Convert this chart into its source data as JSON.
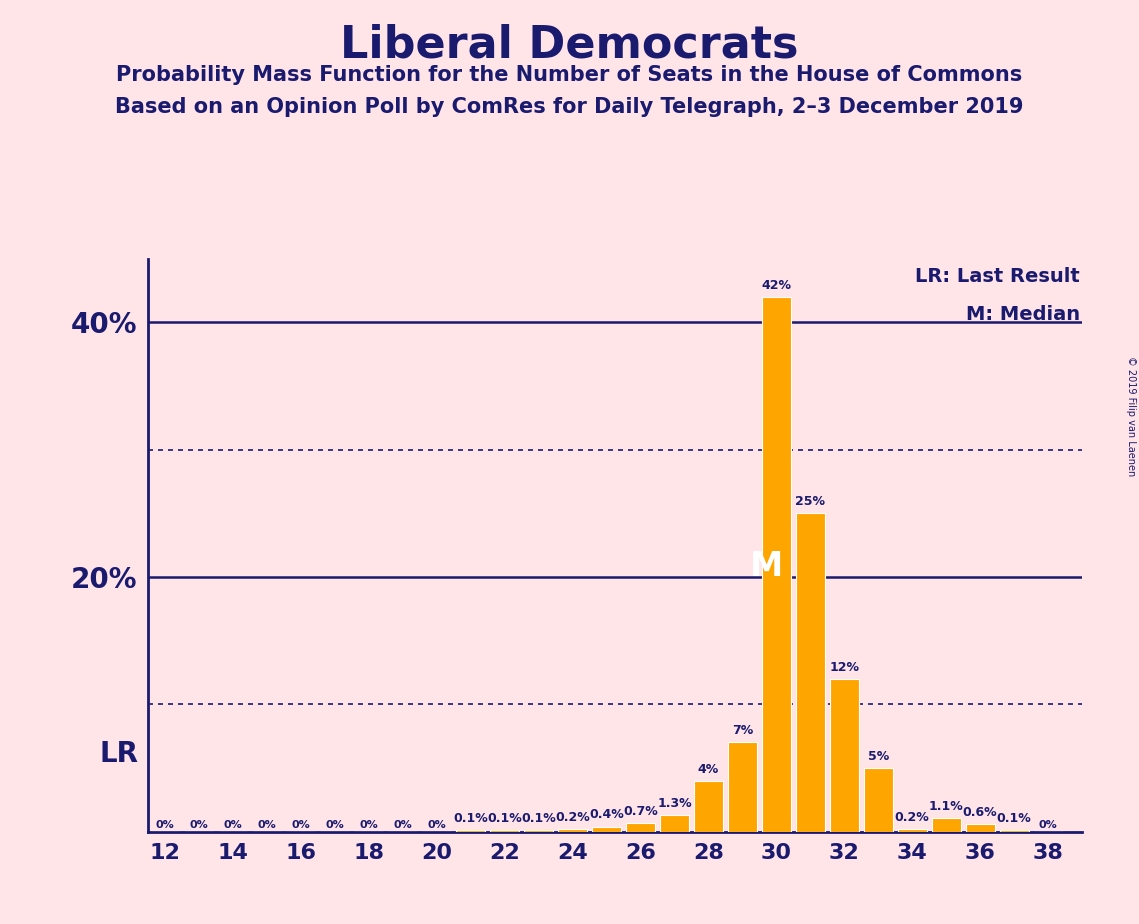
{
  "title": "Liberal Democrats",
  "subtitle1": "Probability Mass Function for the Number of Seats in the House of Commons",
  "subtitle2": "Based on an Opinion Poll by ComRes for Daily Telegraph, 2–3 December 2019",
  "copyright": "© 2019 Filip van Laenen",
  "legend_lr": "LR: Last Result",
  "legend_m": "M: Median",
  "background_color": "#FFE4E8",
  "bar_color": "#FFA500",
  "text_color": "#1a1a6e",
  "grid_color": "#1a1a6e",
  "bar_edge_color": "#ffffff",
  "categories": [
    12,
    13,
    14,
    15,
    16,
    17,
    18,
    19,
    20,
    21,
    22,
    23,
    24,
    25,
    26,
    27,
    28,
    29,
    30,
    31,
    32,
    33,
    34,
    35,
    36,
    37,
    38
  ],
  "values": [
    0.0,
    0.0,
    0.0,
    0.0,
    0.0,
    0.0,
    0.0,
    0.0,
    0.0,
    0.1,
    0.1,
    0.1,
    0.2,
    0.4,
    0.7,
    1.3,
    4.0,
    7.0,
    42.0,
    25.0,
    12.0,
    5.0,
    0.2,
    1.1,
    0.6,
    0.1,
    0.0
  ],
  "labels": [
    "0%",
    "0%",
    "0%",
    "0%",
    "0%",
    "0%",
    "0%",
    "0%",
    "0%",
    "0.1%",
    "0.1%",
    "0.1%",
    "0.2%",
    "0.4%",
    "0.7%",
    "1.3%",
    "4%",
    "7%",
    "42%",
    "25%",
    "12%",
    "5%",
    "0.2%",
    "1.1%",
    "0.6%",
    "0.1%",
    "0%"
  ],
  "ylim": [
    0,
    45
  ],
  "solid_lines": [
    20,
    40
  ],
  "dotted_lines": [
    10,
    30
  ],
  "lr_x": 12,
  "lr_label": "LR",
  "median_x": 30,
  "median_label": "M",
  "xmin": 11.5,
  "xmax": 39
}
